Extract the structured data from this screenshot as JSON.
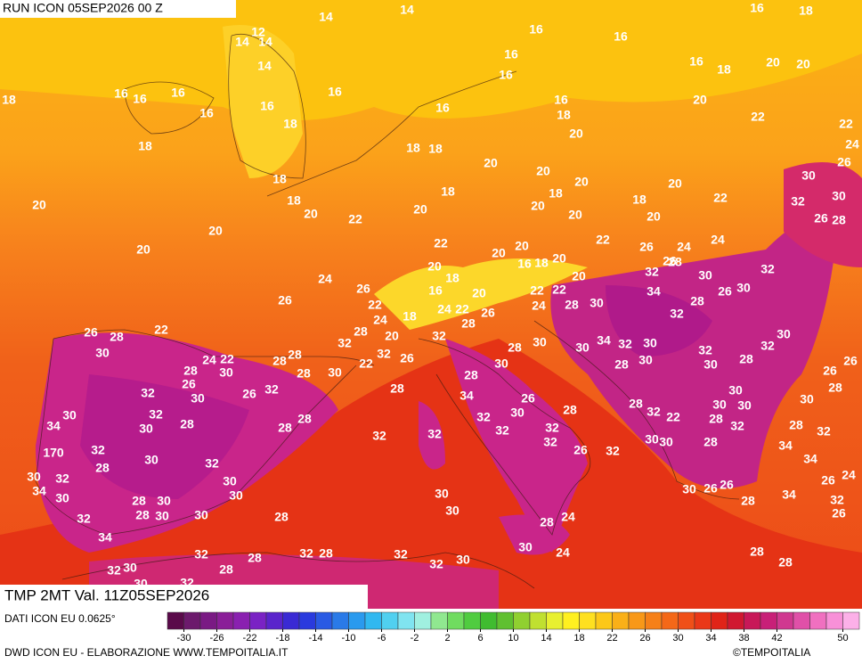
{
  "header": {
    "run": "RUN ICON 05SEP2026 00 Z",
    "field": "TMP 2MT Val. 11Z05SEP2026",
    "source": "DATI ICON EU 0.0625°",
    "credit": "DWD ICON EU - ELABORAZIONE WWW.TEMPOITALIA.IT",
    "copyright": "©TEMPOITALIA"
  },
  "colorbar": {
    "lim": [
      -32,
      52
    ],
    "ticks": [
      -30,
      -26,
      -22,
      -18,
      -14,
      -10,
      -6,
      -2,
      2,
      6,
      10,
      14,
      18,
      22,
      26,
      30,
      34,
      38,
      42,
      50
    ]
  },
  "map_labels": [
    14,
    14,
    12,
    14,
    14,
    14,
    16,
    16,
    16,
    18,
    16,
    16,
    16,
    18,
    20,
    20,
    18,
    16,
    16,
    16,
    16,
    16,
    16,
    16,
    16,
    18,
    20,
    22,
    18,
    18,
    18,
    18,
    20,
    22,
    24,
    26,
    20,
    20,
    20,
    20,
    30,
    18,
    18,
    18,
    18,
    18,
    22,
    32,
    30,
    20,
    20,
    22,
    20,
    20,
    20,
    20,
    26,
    28,
    20,
    20,
    22,
    22,
    26,
    24,
    24,
    20,
    20,
    20,
    16,
    18,
    20,
    26,
    28,
    24,
    18,
    20,
    32,
    30,
    32,
    26,
    26,
    16,
    20,
    22,
    22,
    34,
    26,
    30,
    22,
    24,
    22,
    24,
    28,
    30,
    28,
    24,
    18,
    26,
    32,
    26,
    28,
    22,
    20,
    32,
    28,
    28,
    30,
    32,
    28,
    30,
    30,
    34,
    32,
    30,
    32,
    32,
    30,
    24,
    22,
    28,
    28,
    26,
    30,
    28,
    30,
    30,
    28,
    26,
    28,
    30,
    28,
    30,
    22,
    32,
    28,
    26,
    32,
    26,
    28,
    28,
    32,
    30,
    26,
    30,
    34,
    26,
    30,
    28,
    30,
    30,
    30,
    32,
    28,
    32,
    30,
    28,
    32,
    22,
    28,
    34,
    30,
    28,
    28,
    32,
    32,
    32,
    32,
    30,
    30,
    28,
    32,
    28,
    32,
    32,
    170,
    32,
    30,
    26,
    32,
    34,
    30,
    28,
    32,
    34,
    32,
    30,
    24,
    26,
    34,
    30,
    28,
    30,
    30,
    30,
    30,
    26,
    26,
    28,
    34,
    32,
    30,
    32,
    28,
    30,
    30,
    28,
    24,
    28,
    26,
    34,
    30,
    32,
    28,
    32,
    28,
    32,
    24,
    28,
    32,
    30,
    28,
    32,
    30,
    28,
    32,
    30
  ]
}
